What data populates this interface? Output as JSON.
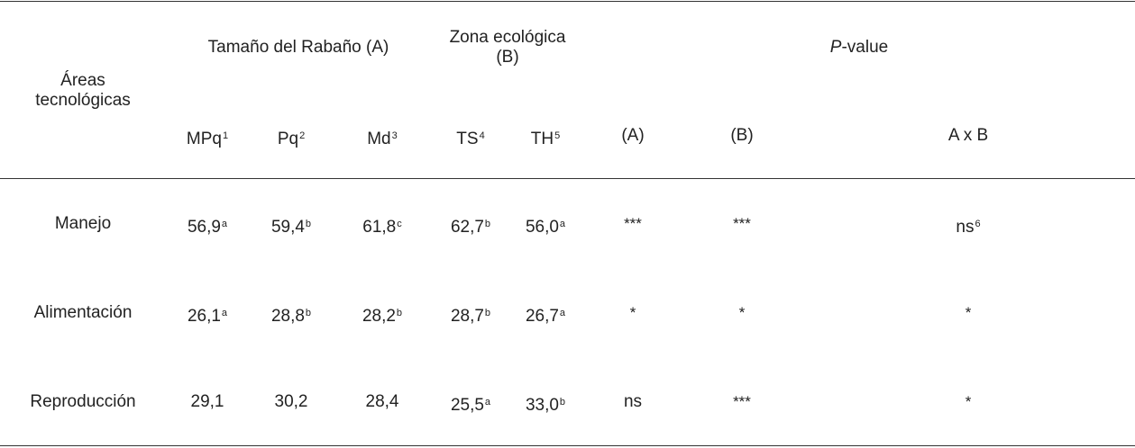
{
  "table": {
    "header": {
      "row_label": [
        "Áreas",
        "tecnológicas"
      ],
      "group_a": "Tamaño del Rabaño (A)",
      "group_b": [
        "Zona ecológica",
        "(B)"
      ],
      "group_p": {
        "italic": "P",
        "rest": "-value"
      },
      "columns": [
        {
          "label": "MPq",
          "sup": "1"
        },
        {
          "label": "Pq",
          "sup": "2"
        },
        {
          "label": "Md",
          "sup": "3"
        },
        {
          "label": "TS",
          "sup": "4"
        },
        {
          "label": "TH",
          "sup": "5"
        },
        {
          "label": "(A)",
          "sup": ""
        },
        {
          "label": "(B)",
          "sup": ""
        },
        {
          "label": "A x B",
          "sup": ""
        }
      ]
    },
    "rows": [
      {
        "area": "Manejo",
        "cells": [
          {
            "v": "56,9",
            "sup": "a"
          },
          {
            "v": "59,4",
            "sup": "b"
          },
          {
            "v": "61,8",
            "sup": "c"
          },
          {
            "v": "62,7",
            "sup": "b"
          },
          {
            "v": "56,0",
            "sup": "a"
          },
          {
            "v": "***",
            "sup": ""
          },
          {
            "v": "***",
            "sup": ""
          },
          {
            "v": "ns",
            "sup": "6"
          }
        ]
      },
      {
        "area": "Alimentación",
        "cells": [
          {
            "v": "26,1",
            "sup": "a"
          },
          {
            "v": "28,8",
            "sup": "b"
          },
          {
            "v": "28,2",
            "sup": "b"
          },
          {
            "v": "28,7",
            "sup": "b"
          },
          {
            "v": "26,7",
            "sup": "a"
          },
          {
            "v": "*",
            "sup": ""
          },
          {
            "v": "*",
            "sup": ""
          },
          {
            "v": "*",
            "sup": ""
          }
        ]
      },
      {
        "area": "Reproducción",
        "cells": [
          {
            "v": "29,1",
            "sup": ""
          },
          {
            "v": "30,2",
            "sup": ""
          },
          {
            "v": "28,4",
            "sup": ""
          },
          {
            "v": "25,5",
            "sup": "a"
          },
          {
            "v": "33,0",
            "sup": "b"
          },
          {
            "v": "ns",
            "sup": ""
          },
          {
            "v": "***",
            "sup": ""
          },
          {
            "v": "*",
            "sup": ""
          }
        ]
      }
    ]
  }
}
